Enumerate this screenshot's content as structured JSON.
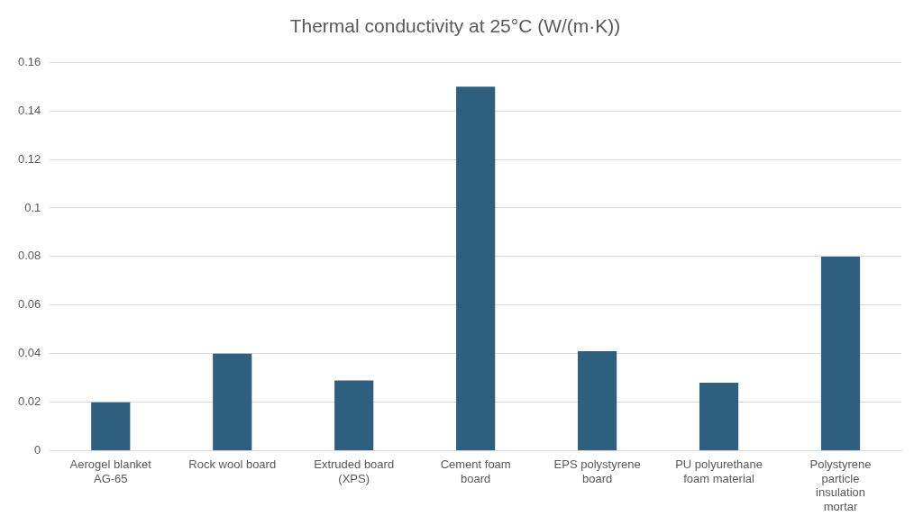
{
  "chart_data": {
    "type": "bar",
    "title": "Thermal conductivity at 25°C (W/(m·K))",
    "categories": [
      "Aerogel blanket AG-65",
      "Rock wool board",
      "Extruded board (XPS)",
      "Cement foam board",
      "EPS polystyrene board",
      "PU polyurethane foam material",
      "Polystyrene particle insulation mortar"
    ],
    "values": [
      0.02,
      0.04,
      0.029,
      0.15,
      0.041,
      0.028,
      0.08
    ],
    "color": "#2e5f7f",
    "ylim": [
      0,
      0.16
    ],
    "yticks": [
      0,
      0.02,
      0.04,
      0.06,
      0.08,
      0.1,
      0.12,
      0.14,
      0.16
    ],
    "grid": true
  }
}
